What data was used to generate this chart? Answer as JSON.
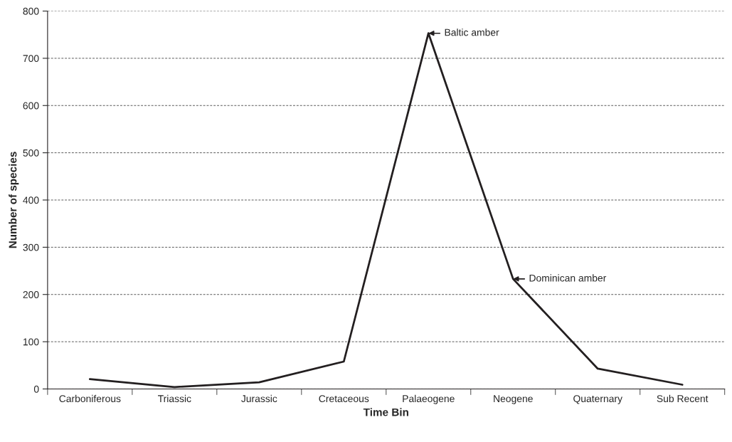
{
  "chart_data": {
    "type": "line",
    "xlabel": "Time Bin",
    "ylabel": "Number of species",
    "categories": [
      "Carboniferous",
      "Triassic",
      "Jurassic",
      "Cretaceous",
      "Palaeogene",
      "Neogene",
      "Quaternary",
      "Sub Recent"
    ],
    "series": [
      {
        "color": "#231f20",
        "values": [
          21,
          4,
          14,
          58,
          753,
          233,
          43,
          9
        ]
      }
    ],
    "ylim": [
      0,
      800
    ],
    "yticks": [
      0,
      100,
      200,
      300,
      400,
      500,
      600,
      700,
      800
    ],
    "grid": "y",
    "marker": "none",
    "line_style": "solid",
    "legend": false,
    "annotations": [
      {
        "text": "Baltic amber",
        "x": "Palaeogene",
        "y": 753
      },
      {
        "text": "Dominican amber",
        "x": "Neogene",
        "y": 233
      }
    ]
  }
}
